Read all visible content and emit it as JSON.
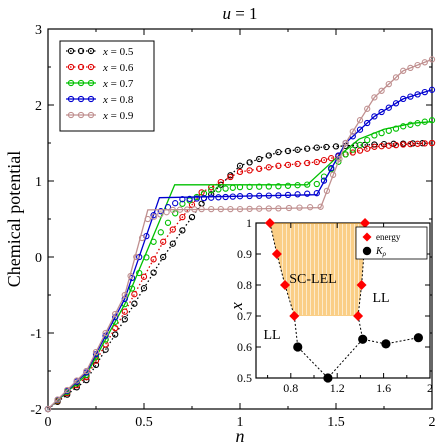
{
  "chart_data": [
    {
      "type": "line",
      "title": "u = 1",
      "title_var": "u",
      "title_rest": " = 1",
      "xlabel": "n",
      "ylabel": "Chemical potential",
      "xlim": [
        0,
        2
      ],
      "ylim": [
        -2,
        3
      ],
      "x_ticks": [
        0,
        0.5,
        1,
        1.5,
        2
      ],
      "x_tick_labels": [
        "0",
        "0.5",
        "1",
        "1.5",
        "2"
      ],
      "y_ticks": [
        -2,
        -1,
        0,
        1,
        2,
        3
      ],
      "y_tick_labels": [
        "-2",
        "-1",
        "0",
        "1",
        "2",
        "3"
      ],
      "grid": false,
      "legend_position": "top-left",
      "series": [
        {
          "name": "x = 0.5",
          "label_var": "x",
          "label_rest": " = 0.5",
          "color": "#000000",
          "line_style": "dotted",
          "line": {
            "x": [
              0,
              0.2,
              0.4,
              0.6,
              0.8,
              1.0,
              1.2,
              1.4,
              1.6,
              1.8,
              2.0
            ],
            "y": [
              -2.0,
              -1.62,
              -0.82,
              0.0,
              0.7,
              1.2,
              1.38,
              1.44,
              1.47,
              1.49,
              1.5
            ]
          },
          "markers": {
            "x": [
              0,
              0.2,
              0.4,
              0.6,
              0.8,
              1.0,
              1.2,
              1.4,
              1.6,
              1.8,
              2.0
            ],
            "y": [
              -2.0,
              -1.62,
              -0.82,
              0.0,
              0.7,
              1.2,
              1.38,
              1.44,
              1.47,
              1.49,
              1.5
            ]
          }
        },
        {
          "name": "x = 0.6",
          "label_var": "x",
          "label_rest": " = 0.6",
          "color": "#e00000",
          "line_style": "dotted",
          "line": {
            "x": [
              0,
              0.2,
              0.4,
              0.6,
              0.8,
              1.0,
              1.2,
              1.4,
              1.55,
              1.7,
              1.85,
              2.0
            ],
            "y": [
              -2.0,
              -1.58,
              -0.72,
              0.2,
              0.85,
              1.12,
              1.2,
              1.25,
              1.35,
              1.45,
              1.48,
              1.5
            ]
          },
          "markers": {
            "x": [
              0,
              0.2,
              0.4,
              0.6,
              0.8,
              1.0,
              1.2,
              1.4,
              1.55,
              1.7,
              1.85,
              2.0
            ],
            "y": [
              -2.0,
              -1.58,
              -0.72,
              0.2,
              0.85,
              1.12,
              1.2,
              1.25,
              1.35,
              1.45,
              1.48,
              1.5
            ]
          }
        },
        {
          "name": "x = 0.7",
          "label_var": "x",
          "label_rest": " = 0.7",
          "color": "#00c000",
          "line_style": "solid",
          "line": {
            "x": [
              0,
              0.2,
              0.4,
              0.66,
              1.0,
              1.35,
              1.5,
              1.62,
              1.75,
              1.9,
              2.0
            ],
            "y": [
              -2.0,
              -1.55,
              -0.62,
              0.95,
              0.95,
              0.95,
              1.3,
              1.55,
              1.68,
              1.76,
              1.78
            ]
          },
          "markers": {
            "x": [
              0,
              0.2,
              0.4,
              0.55,
              0.7,
              0.85,
              1.0,
              1.2,
              1.4,
              1.55,
              1.7,
              1.85,
              2.0
            ],
            "y": [
              -2.0,
              -1.55,
              -0.62,
              0.2,
              0.7,
              0.88,
              0.92,
              0.93,
              0.96,
              1.35,
              1.6,
              1.72,
              1.8
            ]
          }
        },
        {
          "name": "x = 0.8",
          "label_var": "x",
          "label_rest": " = 0.8",
          "color": "#0000d0",
          "line_style": "solid",
          "line": {
            "x": [
              0,
              0.2,
              0.4,
              0.58,
              1.0,
              1.4,
              1.55,
              1.7,
              1.85,
              2.0
            ],
            "y": [
              -2.0,
              -1.52,
              -0.55,
              0.78,
              0.8,
              0.82,
              1.5,
              1.85,
              2.08,
              2.2
            ]
          },
          "markers": {
            "x": [
              0,
              0.2,
              0.4,
              0.55,
              0.7,
              0.85,
              1.0,
              1.2,
              1.4,
              1.55,
              1.7,
              1.85,
              2.0
            ],
            "y": [
              -2.0,
              -1.52,
              -0.55,
              0.55,
              0.76,
              0.78,
              0.8,
              0.81,
              0.84,
              1.5,
              1.85,
              2.08,
              2.2
            ]
          }
        },
        {
          "name": "x = 0.9",
          "label_var": "x",
          "label_rest": " = 0.9",
          "color": "#c09090",
          "line_style": "solid",
          "line": {
            "x": [
              0,
              0.2,
              0.4,
              0.52,
              1.0,
              1.42,
              1.55,
              1.7,
              1.85,
              2.0
            ],
            "y": [
              -2.0,
              -1.5,
              -0.5,
              0.62,
              0.63,
              0.65,
              1.5,
              2.1,
              2.45,
              2.6
            ]
          },
          "markers": {
            "x": [
              0,
              0.2,
              0.4,
              0.52,
              0.65,
              0.8,
              1.0,
              1.2,
              1.42,
              1.55,
              1.7,
              1.85,
              2.0
            ],
            "y": [
              -2.0,
              -1.5,
              -0.5,
              0.5,
              0.62,
              0.63,
              0.63,
              0.64,
              0.66,
              1.5,
              2.1,
              2.45,
              2.6
            ]
          }
        }
      ]
    },
    {
      "type": "scatter",
      "xlim": [
        0.5,
        2.0
      ],
      "ylim": [
        0.5,
        1.0
      ],
      "x_ticks": [
        0.8,
        1.2,
        1.6,
        2.0
      ],
      "x_tick_labels": [
        "0.8",
        "1.2",
        "1.6",
        "2"
      ],
      "y_ticks": [
        0.5,
        0.6,
        0.7,
        0.8,
        0.9,
        1.0
      ],
      "y_tick_labels": [
        "0.5",
        "0.6",
        "0.7",
        "0.8",
        "0.9",
        "1"
      ],
      "ylabel": "x",
      "legend_position": "top-right",
      "region_labels": [
        "SC-LEL",
        "LL",
        "LL"
      ],
      "series": [
        {
          "name": "energy",
          "color": "#ff0000",
          "marker": "diamond",
          "x": [
            0.62,
            0.68,
            0.75,
            0.83,
            1.38,
            1.41,
            1.43,
            1.44
          ],
          "y": [
            1.0,
            0.9,
            0.8,
            0.7,
            0.7,
            0.8,
            0.9,
            1.0
          ]
        },
        {
          "name": "K",
          "name_sub": "ρ",
          "color": "#000000",
          "marker": "circle",
          "x": [
            0.86,
            1.12,
            1.42,
            1.62,
            1.9
          ],
          "y": [
            0.6,
            0.5,
            0.625,
            0.61,
            0.63
          ]
        }
      ]
    }
  ]
}
